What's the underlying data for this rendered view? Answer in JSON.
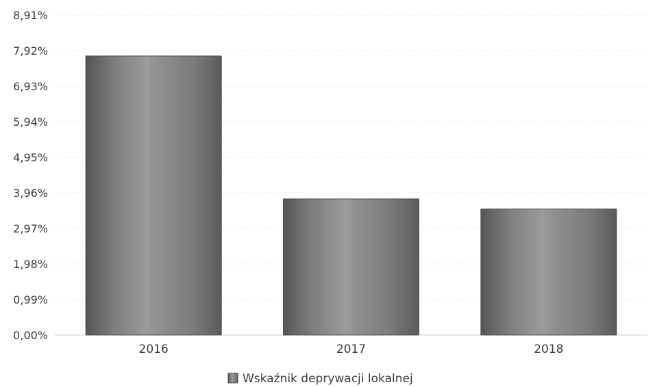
{
  "chart_data": {
    "type": "bar",
    "categories": [
      "2016",
      "2017",
      "2018"
    ],
    "series": [
      {
        "name": "Wskaźnik deprywacji lokalnej",
        "values": [
          7.77,
          3.79,
          3.51
        ]
      }
    ],
    "ylim": [
      0,
      8.91
    ],
    "yticks": [
      "0,00%",
      "0,99%",
      "1,98%",
      "2,97%",
      "3,96%",
      "4,95%",
      "5,94%",
      "6,93%",
      "7,92%",
      "8,91%"
    ],
    "ytick_values": [
      0,
      0.99,
      1.98,
      2.97,
      3.96,
      4.95,
      5.94,
      6.93,
      7.92,
      8.91
    ],
    "title": "",
    "xlabel": "",
    "ylabel": "",
    "grid": true,
    "legend_position": "bottom-center",
    "colors": {
      "bar_dark": "#585858",
      "bar_mid": "#8a8a8a",
      "bar_light": "#9c9c9c"
    }
  }
}
